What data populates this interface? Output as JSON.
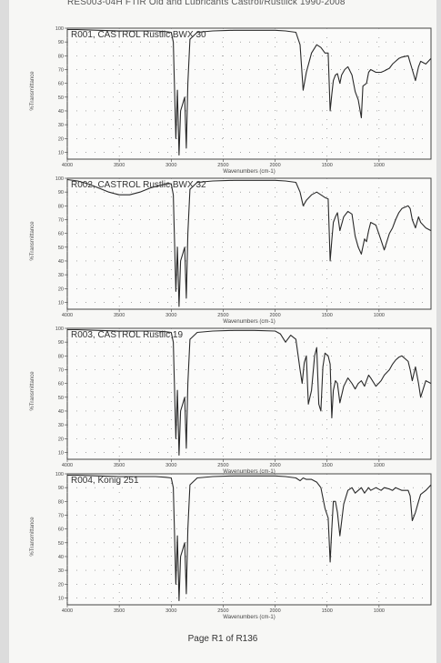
{
  "header": {
    "text": "RES003-04H FTIR Old and Lubricants Castrol/Rustlick 1990-2008"
  },
  "footer": {
    "text": "Page R1 of R136"
  },
  "colors": {
    "trace": "#2a2a2a",
    "frame": "#444444",
    "dots": "#777777"
  },
  "chart_data": [
    {
      "type": "line",
      "title": "R001, CASTROL Rustlic BWX 30",
      "xlabel": "Wavenumbers (cm-1)",
      "ylabel": "%Transmittance",
      "xlim": [
        4000,
        500
      ],
      "ylim": [
        5,
        100
      ],
      "xticks": [
        4000,
        3500,
        3000,
        2500,
        2000,
        1500,
        1000
      ],
      "yticks": [
        10,
        20,
        30,
        40,
        50,
        60,
        70,
        80,
        90,
        100
      ],
      "grid": "dotted",
      "series": [
        {
          "x": [
            4000,
            3900,
            3700,
            3500,
            3300,
            3150,
            3050,
            3000,
            2980,
            2955,
            2940,
            2925,
            2910,
            2890,
            2870,
            2855,
            2840,
            2820,
            2750,
            2600,
            2400,
            2200,
            2000,
            1900,
            1800,
            1760,
            1730,
            1700,
            1650,
            1600,
            1560,
            1520,
            1490,
            1470,
            1455,
            1440,
            1420,
            1400,
            1377,
            1360,
            1330,
            1300,
            1260,
            1230,
            1200,
            1170,
            1155,
            1120,
            1100,
            1080,
            1030,
            980,
            950,
            900,
            870,
            840,
            810,
            780,
            720,
            700,
            680,
            650,
            620,
            600,
            550,
            500
          ],
          "y": [
            99,
            99,
            98.5,
            98,
            98,
            98,
            97.5,
            97,
            90,
            20,
            55,
            8,
            40,
            45,
            50,
            13,
            60,
            92,
            97,
            98,
            98.5,
            98.5,
            98.5,
            98,
            97,
            88,
            55,
            68,
            82,
            88,
            86,
            82,
            82,
            40,
            52,
            62,
            66,
            67,
            60,
            66,
            70,
            72,
            66,
            54,
            48,
            35,
            58,
            60,
            68,
            70,
            68,
            68,
            69,
            71,
            74,
            76,
            78,
            79,
            80,
            75,
            70,
            62,
            72,
            76,
            74,
            78
          ]
        }
      ]
    },
    {
      "type": "line",
      "title": "R002, CASTROL Rustlic BWX 32",
      "xlabel": "Wavenumbers (cm-1)",
      "ylabel": "%Transmittance",
      "xlim": [
        4000,
        500
      ],
      "ylim": [
        5,
        100
      ],
      "xticks": [
        4000,
        3500,
        3000,
        2500,
        2000,
        1500,
        1000
      ],
      "yticks": [
        10,
        20,
        30,
        40,
        50,
        60,
        70,
        80,
        90,
        100
      ],
      "grid": "dotted",
      "series": [
        {
          "x": [
            4000,
            3900,
            3800,
            3700,
            3600,
            3500,
            3400,
            3300,
            3200,
            3100,
            3050,
            3000,
            2980,
            2955,
            2940,
            2925,
            2910,
            2890,
            2870,
            2855,
            2840,
            2820,
            2750,
            2600,
            2400,
            2200,
            2000,
            1900,
            1800,
            1760,
            1730,
            1700,
            1650,
            1600,
            1560,
            1520,
            1490,
            1470,
            1455,
            1440,
            1420,
            1400,
            1377,
            1340,
            1300,
            1260,
            1230,
            1200,
            1170,
            1140,
            1120,
            1100,
            1080,
            1030,
            980,
            950,
            900,
            870,
            840,
            810,
            780,
            720,
            700,
            680,
            650,
            620,
            600,
            550,
            500
          ],
          "y": [
            99,
            98,
            96,
            93,
            90,
            88,
            88,
            90,
            93,
            95,
            96,
            96,
            88,
            18,
            50,
            7,
            40,
            45,
            50,
            13,
            60,
            92,
            97,
            98,
            98.5,
            98.5,
            98.5,
            98,
            97,
            90,
            80,
            84,
            88,
            90,
            88,
            86,
            85,
            40,
            55,
            68,
            72,
            75,
            62,
            72,
            76,
            74,
            58,
            50,
            45,
            56,
            54,
            62,
            68,
            66,
            55,
            48,
            60,
            64,
            70,
            75,
            78,
            80,
            78,
            70,
            64,
            72,
            68,
            64,
            62
          ]
        }
      ]
    },
    {
      "type": "line",
      "title": "R003, CASTROL Rustlic 19",
      "xlabel": "Wavenumbers (cm-1)",
      "ylabel": "%Transmittance",
      "xlim": [
        4000,
        500
      ],
      "ylim": [
        5,
        100
      ],
      "xticks": [
        4000,
        3500,
        3000,
        2500,
        2000,
        1500,
        1000
      ],
      "yticks": [
        10,
        20,
        30,
        40,
        50,
        60,
        70,
        80,
        90,
        100
      ],
      "grid": "dotted",
      "series": [
        {
          "x": [
            4000,
            3900,
            3700,
            3500,
            3300,
            3150,
            3050,
            3000,
            2980,
            2955,
            2940,
            2925,
            2910,
            2890,
            2870,
            2855,
            2840,
            2820,
            2750,
            2600,
            2400,
            2200,
            2000,
            1950,
            1900,
            1850,
            1800,
            1760,
            1740,
            1720,
            1700,
            1680,
            1650,
            1620,
            1600,
            1580,
            1560,
            1540,
            1520,
            1490,
            1470,
            1455,
            1440,
            1420,
            1400,
            1377,
            1340,
            1300,
            1260,
            1230,
            1200,
            1170,
            1140,
            1120,
            1100,
            1080,
            1030,
            980,
            950,
            900,
            870,
            840,
            810,
            780,
            720,
            700,
            680,
            650,
            620,
            600,
            550,
            500
          ],
          "y": [
            99,
            99,
            98.5,
            98,
            98,
            98,
            97.5,
            97,
            90,
            20,
            55,
            8,
            40,
            45,
            50,
            13,
            60,
            92,
            97,
            98,
            98.5,
            98.5,
            98,
            96,
            90,
            95,
            92,
            70,
            60,
            75,
            80,
            45,
            55,
            80,
            86,
            45,
            40,
            72,
            82,
            80,
            74,
            35,
            55,
            62,
            60,
            46,
            58,
            64,
            60,
            56,
            60,
            62,
            58,
            62,
            66,
            64,
            58,
            62,
            66,
            70,
            74,
            77,
            79,
            80,
            76,
            70,
            62,
            72,
            60,
            50,
            62,
            60
          ]
        }
      ]
    },
    {
      "type": "line",
      "title": "R004, Konig 251",
      "xlabel": "Wavenumbers (cm-1)",
      "ylabel": "%Transmittance",
      "xlim": [
        4000,
        500
      ],
      "ylim": [
        5,
        100
      ],
      "xticks": [
        4000,
        3500,
        3000,
        2500,
        2000,
        1500,
        1000
      ],
      "yticks": [
        10,
        20,
        30,
        40,
        50,
        60,
        70,
        80,
        90,
        100
      ],
      "grid": "dotted",
      "series": [
        {
          "x": [
            4000,
            3900,
            3700,
            3500,
            3300,
            3150,
            3050,
            3000,
            2980,
            2955,
            2940,
            2925,
            2910,
            2890,
            2870,
            2855,
            2840,
            2820,
            2750,
            2600,
            2400,
            2200,
            2000,
            1900,
            1800,
            1760,
            1730,
            1700,
            1650,
            1600,
            1560,
            1520,
            1490,
            1470,
            1455,
            1440,
            1420,
            1400,
            1377,
            1340,
            1300,
            1260,
            1230,
            1200,
            1170,
            1140,
            1120,
            1100,
            1080,
            1030,
            980,
            950,
            900,
            870,
            840,
            810,
            780,
            720,
            700,
            680,
            650,
            620,
            600,
            550,
            500
          ],
          "y": [
            99,
            99,
            98.5,
            98,
            98,
            98,
            97.5,
            97,
            90,
            20,
            55,
            8,
            40,
            45,
            50,
            13,
            60,
            92,
            97,
            98,
            98.5,
            98.5,
            98.5,
            98,
            97,
            95,
            97,
            96,
            96,
            94,
            90,
            75,
            68,
            36,
            60,
            80,
            80,
            72,
            55,
            78,
            88,
            90,
            86,
            88,
            90,
            86,
            88,
            90,
            88,
            90,
            88,
            90,
            89,
            88,
            90,
            89,
            88,
            88,
            84,
            66,
            72,
            80,
            85,
            88,
            92
          ]
        }
      ]
    }
  ]
}
